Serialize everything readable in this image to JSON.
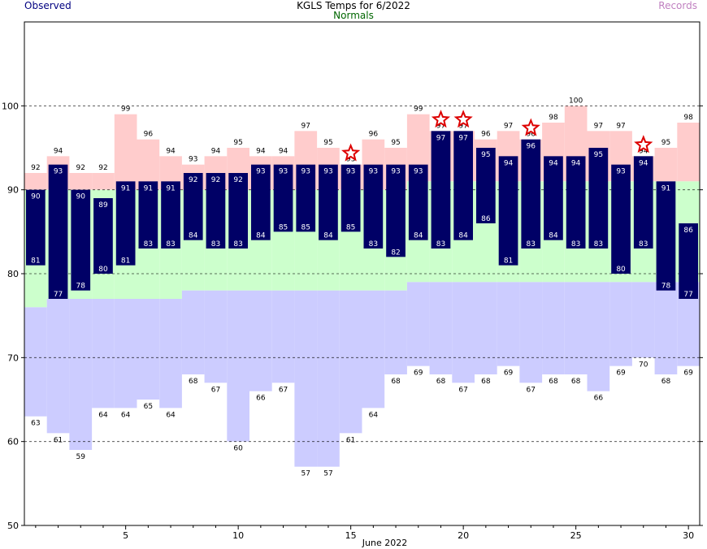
{
  "header": {
    "left_label": "Observed",
    "title": "KGLS Temps for 6/2022",
    "center_sub": "Normals",
    "right_label": "Records"
  },
  "colors": {
    "observed": "#000066",
    "normal_range": "#ccffcc",
    "record_high": "#ffcccc",
    "record_low": "#ccccff",
    "star": "#dd0000",
    "grid": "#000000"
  },
  "chart_data": {
    "type": "bar",
    "title": "KGLS Temps for 6/2022",
    "xlabel": "June 2022",
    "ylabel": "",
    "ylim": [
      50,
      110
    ],
    "xlim": [
      0.5,
      30.5
    ],
    "x_ticks": [
      5,
      10,
      15,
      20,
      25,
      30
    ],
    "y_ticks": [
      50,
      60,
      70,
      80,
      90,
      100
    ],
    "grid": "dashed at 60, 70, 80, 90, 100",
    "days": [
      1,
      2,
      3,
      4,
      5,
      6,
      7,
      8,
      9,
      10,
      11,
      12,
      13,
      14,
      15,
      16,
      17,
      18,
      19,
      20,
      21,
      22,
      23,
      24,
      25,
      26,
      27,
      28,
      29,
      30
    ],
    "observed_high": [
      90,
      93,
      90,
      89,
      91,
      91,
      91,
      92,
      92,
      92,
      93,
      93,
      93,
      93,
      93,
      93,
      93,
      93,
      97,
      97,
      95,
      94,
      96,
      94,
      94,
      95,
      93,
      94,
      91,
      86
    ],
    "observed_low": [
      81,
      77,
      78,
      80,
      81,
      83,
      83,
      84,
      83,
      83,
      84,
      85,
      85,
      84,
      85,
      83,
      82,
      84,
      83,
      84,
      86,
      81,
      83,
      84,
      83,
      83,
      80,
      83,
      78,
      77
    ],
    "normal_high": [
      90,
      90,
      90,
      90,
      90,
      90,
      90,
      90,
      90,
      90,
      90,
      90,
      90,
      90,
      90,
      90,
      90,
      91,
      91,
      91,
      91,
      91,
      91,
      91,
      91,
      91,
      91,
      91,
      91,
      91
    ],
    "normal_low": [
      76,
      77,
      77,
      77,
      77,
      77,
      77,
      78,
      78,
      78,
      78,
      78,
      78,
      78,
      78,
      78,
      78,
      79,
      79,
      79,
      79,
      79,
      79,
      79,
      79,
      79,
      79,
      79,
      79,
      79
    ],
    "record_high": [
      92,
      94,
      92,
      92,
      99,
      96,
      94,
      93,
      94,
      95,
      94,
      94,
      97,
      95,
      93,
      96,
      95,
      99,
      97,
      97,
      96,
      97,
      96,
      98,
      100,
      97,
      97,
      94,
      95,
      98
    ],
    "record_low": [
      63,
      61,
      59,
      64,
      64,
      65,
      64,
      68,
      67,
      60,
      66,
      67,
      57,
      57,
      61,
      64,
      68,
      69,
      68,
      67,
      68,
      69,
      67,
      68,
      68,
      66,
      69,
      70,
      68,
      69
    ],
    "record_set_days": [
      15,
      19,
      20,
      23,
      28
    ]
  }
}
